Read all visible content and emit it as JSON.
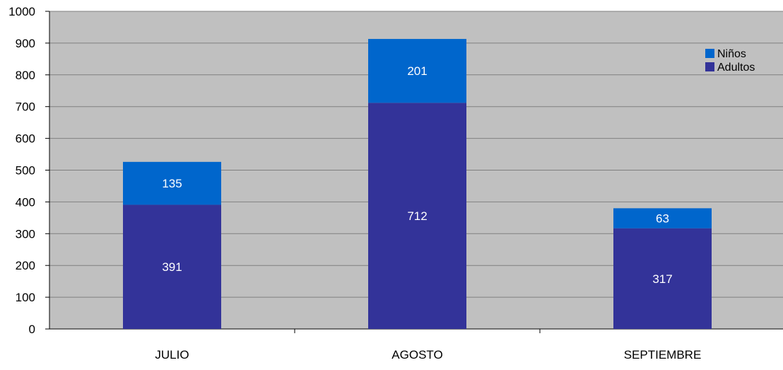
{
  "chart_data": {
    "type": "bar",
    "stacked": true,
    "title": "",
    "xlabel": "",
    "ylabel": "",
    "categories": [
      "JULIO",
      "AGOSTO",
      "SEPTIEMBRE"
    ],
    "series": [
      {
        "name": "Adultos",
        "values": [
          391,
          712,
          317
        ],
        "color": "#333399"
      },
      {
        "name": "Niños",
        "values": [
          135,
          201,
          63
        ],
        "color": "#0066CC"
      }
    ],
    "ylim": [
      0,
      1000
    ],
    "yticks": [
      0,
      100,
      200,
      300,
      400,
      500,
      600,
      700,
      800,
      900,
      1000
    ],
    "grid": true,
    "legend_position": "top-right",
    "legend_order": [
      "Niños",
      "Adultos"
    ],
    "plot_background": "#C0C0C0",
    "label_color": "#FFFFFF"
  }
}
